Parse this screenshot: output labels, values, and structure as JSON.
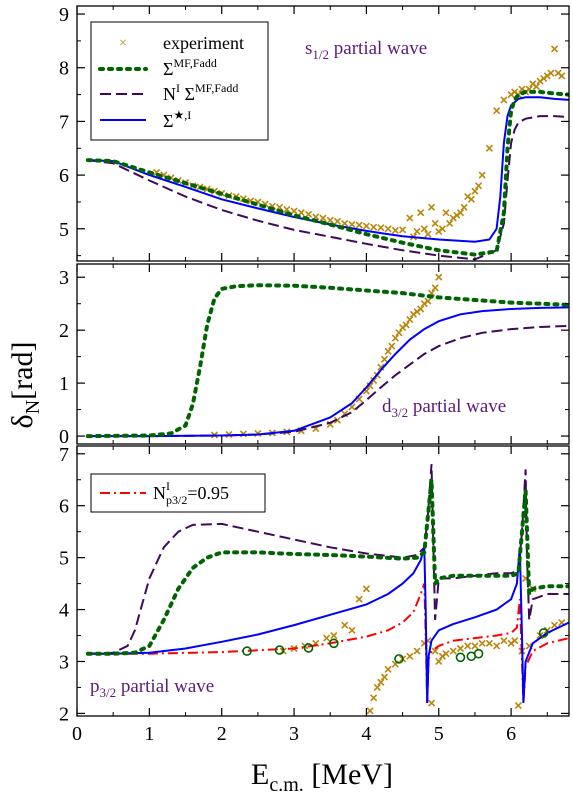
{
  "figure": {
    "ylabel_main": "δ",
    "ylabel_sub": "N",
    "ylabel_unit": "[rad]",
    "xlabel_main": "E",
    "xlabel_sub": "c.m.",
    "xlabel_unit": " [MeV]"
  },
  "colors": {
    "experiment": "#b8860b",
    "sigma_mf_fadd": "#006400",
    "ni_sigma_mf_fadd": "#3d0a5c",
    "sigma_star": "#0000ff",
    "n_p32": "#ff0000",
    "open_circles": "#006400",
    "annotation": "#5b1a78"
  },
  "legend": {
    "experiment": "experiment",
    "sigma_mf": {
      "base": "Σ",
      "sup": "MF,Fadd"
    },
    "ni_sigma": {
      "n": "N",
      "n_sup": "I",
      "sigma": " Σ",
      "sigma_sup": "MF,Fadd"
    },
    "sigma_star": {
      "base": "Σ",
      "sup": "★,I"
    },
    "np32": {
      "base": "N",
      "sup": "I",
      "sub": "p3/2",
      "tail": "=0.95"
    }
  },
  "chart_data": [
    {
      "type": "line",
      "annotation": {
        "main": "s",
        "sub": "1/2",
        "tail": " partial wave"
      },
      "xlim": [
        0,
        6.8
      ],
      "ylim": [
        4.4,
        9.15
      ],
      "yticks": [
        5,
        6,
        7,
        8,
        9
      ],
      "xticks": [
        0,
        1,
        2,
        3,
        4,
        5,
        6
      ],
      "series": [
        {
          "name": "experiment",
          "style": "cross",
          "x": [
            1.1,
            1.2,
            1.3,
            1.4,
            1.5,
            1.6,
            1.7,
            1.8,
            1.9,
            2.0,
            2.1,
            2.2,
            2.3,
            2.4,
            2.5,
            2.6,
            2.7,
            2.8,
            2.9,
            3.0,
            3.1,
            3.2,
            3.3,
            3.4,
            3.5,
            3.6,
            3.7,
            3.8,
            3.9,
            4.0,
            4.1,
            4.2,
            4.3,
            4.4,
            4.5,
            4.6,
            4.65,
            4.7,
            4.75,
            4.8,
            4.85,
            4.9,
            4.95,
            5.0,
            5.05,
            5.1,
            5.15,
            5.2,
            5.25,
            5.3,
            5.35,
            5.4,
            5.45,
            5.5,
            5.55,
            5.6,
            5.7,
            5.8,
            5.9,
            6.0,
            6.05,
            6.1,
            6.15,
            6.2,
            6.25,
            6.3,
            6.35,
            6.4,
            6.45,
            6.5,
            6.55,
            6.6,
            6.65,
            6.7
          ],
          "y": [
            6.05,
            6.0,
            5.95,
            5.9,
            5.86,
            5.8,
            5.78,
            5.74,
            5.7,
            5.66,
            5.62,
            5.6,
            5.56,
            5.52,
            5.5,
            5.46,
            5.42,
            5.4,
            5.36,
            5.33,
            5.3,
            5.27,
            5.22,
            5.2,
            5.16,
            5.14,
            5.1,
            5.08,
            5.07,
            5.05,
            5.03,
            5.02,
            5.0,
            4.97,
            4.98,
            5.2,
            4.85,
            4.95,
            5.3,
            5.0,
            4.9,
            5.4,
            5.1,
            4.95,
            5.0,
            5.3,
            5.1,
            5.2,
            5.25,
            5.3,
            5.4,
            5.6,
            5.55,
            5.7,
            5.8,
            6.0,
            6.5,
            7.2,
            7.4,
            7.5,
            7.55,
            7.5,
            7.6,
            7.55,
            7.6,
            7.7,
            7.65,
            7.75,
            7.8,
            7.85,
            7.9,
            8.35,
            7.9,
            7.85
          ]
        },
        {
          "name": "Σ^MF,Fadd",
          "style": "dotted",
          "x": [
            0.15,
            0.5,
            1.0,
            1.5,
            2.0,
            2.5,
            3.0,
            3.5,
            4.0,
            4.5,
            5.0,
            5.5,
            5.8,
            5.9,
            5.95,
            6.0,
            6.05,
            6.1,
            6.2,
            6.4,
            6.6,
            6.8
          ],
          "y": [
            6.28,
            6.26,
            6.05,
            5.85,
            5.65,
            5.45,
            5.25,
            5.08,
            4.9,
            4.74,
            4.6,
            4.52,
            4.58,
            5.3,
            6.5,
            7.2,
            7.4,
            7.5,
            7.55,
            7.55,
            7.52,
            7.5
          ]
        },
        {
          "name": "N^I Σ^MF,Fadd",
          "style": "dashed",
          "x": [
            0.15,
            0.5,
            1.0,
            1.5,
            2.0,
            2.5,
            3.0,
            3.5,
            4.0,
            4.5,
            5.0,
            5.5,
            5.8,
            5.9,
            5.95,
            6.0,
            6.05,
            6.1,
            6.2,
            6.4,
            6.6,
            6.8
          ],
          "y": [
            6.28,
            6.22,
            5.9,
            5.6,
            5.35,
            5.15,
            4.98,
            4.85,
            4.72,
            4.6,
            4.5,
            4.43,
            4.6,
            5.1,
            5.9,
            6.6,
            6.85,
            6.98,
            7.05,
            7.1,
            7.1,
            7.08
          ]
        },
        {
          "name": "Σ^★,I",
          "style": "solid",
          "x": [
            0.15,
            0.5,
            1.0,
            1.5,
            2.0,
            2.5,
            3.0,
            3.5,
            4.0,
            4.5,
            5.0,
            5.5,
            5.7,
            5.8,
            5.85,
            5.9,
            5.95,
            6.0,
            6.1,
            6.2,
            6.4,
            6.6,
            6.8
          ],
          "y": [
            6.28,
            6.26,
            6.0,
            5.78,
            5.55,
            5.38,
            5.22,
            5.08,
            4.96,
            4.86,
            4.8,
            4.76,
            4.8,
            5.0,
            5.6,
            6.6,
            7.1,
            7.3,
            7.42,
            7.45,
            7.45,
            7.42,
            7.4
          ]
        }
      ]
    },
    {
      "type": "line",
      "annotation": {
        "main": "d",
        "sub": "3/2",
        "tail": " partial wave"
      },
      "xlim": [
        0,
        6.8
      ],
      "ylim": [
        -0.15,
        3.25
      ],
      "yticks": [
        0,
        1,
        2,
        3
      ],
      "xticks": [
        0,
        1,
        2,
        3,
        4,
        5,
        6
      ],
      "series": [
        {
          "name": "experiment",
          "style": "cross",
          "x": [
            1.9,
            2.1,
            2.3,
            2.5,
            2.7,
            2.9,
            3.1,
            3.3,
            3.5,
            3.6,
            3.7,
            3.8,
            3.9,
            4.0,
            4.05,
            4.1,
            4.15,
            4.2,
            4.25,
            4.3,
            4.35,
            4.4,
            4.45,
            4.5,
            4.55,
            4.6,
            4.65,
            4.7,
            4.75,
            4.8,
            4.85,
            4.9,
            4.95,
            5.0
          ],
          "y": [
            0.02,
            0.03,
            0.04,
            0.05,
            0.06,
            0.08,
            0.1,
            0.14,
            0.22,
            0.3,
            0.42,
            0.55,
            0.7,
            0.85,
            0.95,
            1.05,
            1.15,
            1.3,
            1.45,
            1.6,
            1.7,
            1.85,
            1.95,
            2.05,
            2.1,
            2.2,
            2.3,
            2.35,
            2.4,
            2.5,
            2.55,
            2.7,
            2.8,
            3.0
          ]
        },
        {
          "name": "Σ^MF,Fadd",
          "style": "dotted",
          "x": [
            0.15,
            1.0,
            1.3,
            1.5,
            1.6,
            1.7,
            1.8,
            1.9,
            2.0,
            2.2,
            2.5,
            3.0,
            3.5,
            4.0,
            4.5,
            5.0,
            5.5,
            6.0,
            6.8
          ],
          "y": [
            0.0,
            0.01,
            0.05,
            0.2,
            0.6,
            1.3,
            2.1,
            2.6,
            2.78,
            2.83,
            2.85,
            2.84,
            2.8,
            2.75,
            2.7,
            2.62,
            2.57,
            2.52,
            2.48
          ]
        },
        {
          "name": "N^I Σ^MF,Fadd",
          "style": "dashed",
          "x": [
            0.15,
            1.0,
            2.0,
            2.5,
            3.0,
            3.5,
            3.8,
            4.0,
            4.2,
            4.4,
            4.6,
            4.8,
            5.0,
            5.3,
            5.6,
            6.0,
            6.4,
            6.8
          ],
          "y": [
            0.0,
            0.0,
            0.01,
            0.03,
            0.08,
            0.25,
            0.45,
            0.68,
            0.92,
            1.15,
            1.35,
            1.55,
            1.7,
            1.85,
            1.95,
            2.02,
            2.06,
            2.08
          ]
        },
        {
          "name": "Σ^★,I",
          "style": "solid",
          "x": [
            0.15,
            1.0,
            2.0,
            2.5,
            3.0,
            3.5,
            3.8,
            4.0,
            4.2,
            4.4,
            4.6,
            4.8,
            5.0,
            5.3,
            5.6,
            6.0,
            6.4,
            6.8
          ],
          "y": [
            0.0,
            0.0,
            0.01,
            0.03,
            0.1,
            0.35,
            0.62,
            0.92,
            1.25,
            1.55,
            1.82,
            2.02,
            2.17,
            2.3,
            2.36,
            2.4,
            2.42,
            2.43
          ]
        }
      ]
    },
    {
      "type": "line",
      "annotation": {
        "main": "p",
        "sub": "3/2",
        "tail": " partial wave"
      },
      "xlim": [
        0,
        6.8
      ],
      "ylim": [
        1.95,
        7.15
      ],
      "yticks": [
        2,
        3,
        4,
        5,
        6,
        7
      ],
      "xticks": [
        0,
        1,
        2,
        3,
        4,
        5,
        6
      ],
      "series": [
        {
          "name": "experiment",
          "style": "cross",
          "x": [
            2.85,
            3.0,
            3.15,
            3.3,
            3.45,
            3.55,
            3.7,
            3.8,
            3.9,
            4.0,
            4.05,
            4.1,
            4.15,
            4.2,
            4.25,
            4.3,
            4.4,
            4.5,
            4.6,
            4.7,
            4.8,
            4.85,
            4.9,
            4.95,
            5.0,
            5.05,
            5.1,
            5.2,
            5.3,
            5.4,
            5.5,
            5.6,
            5.7,
            5.8,
            5.9,
            6.0,
            6.05,
            6.1,
            6.15,
            6.2,
            6.25,
            6.3,
            6.4,
            6.5,
            6.6,
            6.7
          ],
          "y": [
            3.2,
            3.25,
            3.3,
            3.35,
            3.45,
            3.5,
            3.7,
            3.6,
            4.2,
            4.4,
            2.05,
            2.3,
            2.5,
            2.6,
            2.7,
            2.85,
            2.95,
            3.05,
            3.1,
            3.2,
            3.35,
            3.4,
            2.2,
            3.2,
            3.0,
            3.1,
            3.15,
            3.2,
            3.25,
            3.3,
            3.3,
            3.35,
            3.35,
            3.3,
            3.4,
            3.35,
            3.4,
            2.15,
            3.2,
            4.6,
            3.3,
            4.4,
            3.5,
            3.6,
            3.7,
            3.75
          ]
        },
        {
          "name": "Σ^MF,Fadd",
          "style": "dotted",
          "x": [
            0.15,
            0.5,
            0.8,
            1.0,
            1.2,
            1.4,
            1.6,
            1.8,
            2.0,
            2.5,
            3.0,
            3.5,
            4.0,
            4.5,
            4.7,
            4.8,
            4.85,
            4.9,
            4.95,
            5.0,
            5.2,
            5.5,
            5.8,
            6.0,
            6.1,
            6.15,
            6.2,
            6.25,
            6.3,
            6.5,
            6.8
          ],
          "y": [
            3.15,
            3.15,
            3.17,
            3.3,
            3.8,
            4.4,
            4.8,
            5.0,
            5.1,
            5.1,
            5.07,
            5.05,
            5.02,
            4.98,
            5.0,
            5.1,
            5.8,
            6.5,
            4.5,
            4.6,
            4.65,
            4.65,
            4.65,
            4.65,
            4.7,
            5.5,
            6.3,
            4.3,
            4.4,
            4.45,
            4.45
          ]
        },
        {
          "name": "N^I Σ^MF,Fadd",
          "style": "dashed",
          "x": [
            0.15,
            0.5,
            0.7,
            0.8,
            0.9,
            1.0,
            1.2,
            1.4,
            1.6,
            2.0,
            2.5,
            3.0,
            3.5,
            4.0,
            4.5,
            4.7,
            4.8,
            4.85,
            4.9,
            4.92,
            4.95,
            5.0,
            5.2,
            5.5,
            5.8,
            6.0,
            6.1,
            6.15,
            6.2,
            6.22,
            6.25,
            6.3,
            6.5,
            6.8
          ],
          "y": [
            3.15,
            3.17,
            3.3,
            3.6,
            4.1,
            4.6,
            5.2,
            5.5,
            5.63,
            5.65,
            5.5,
            5.35,
            5.2,
            5.08,
            5.0,
            5.05,
            5.2,
            5.8,
            6.8,
            5.5,
            3.8,
            4.6,
            4.6,
            4.65,
            4.7,
            4.7,
            4.75,
            5.5,
            6.7,
            5.0,
            3.8,
            4.2,
            4.3,
            4.3
          ]
        },
        {
          "name": "Σ^★,I",
          "style": "solid",
          "x": [
            0.15,
            0.5,
            1.0,
            1.5,
            2.0,
            2.5,
            3.0,
            3.5,
            4.0,
            4.3,
            4.5,
            4.65,
            4.75,
            4.8,
            4.82,
            4.84,
            4.86,
            4.9,
            5.0,
            5.2,
            5.5,
            5.8,
            6.0,
            6.08,
            6.12,
            6.15,
            6.17,
            6.2,
            6.3,
            6.5,
            6.8
          ],
          "y": [
            3.15,
            3.15,
            3.17,
            3.25,
            3.38,
            3.52,
            3.7,
            3.9,
            4.1,
            4.3,
            4.5,
            4.7,
            4.95,
            5.2,
            4.0,
            2.2,
            3.1,
            3.4,
            3.6,
            3.72,
            3.85,
            4.0,
            4.2,
            4.5,
            5.2,
            3.5,
            2.2,
            3.0,
            3.35,
            3.55,
            3.75
          ]
        },
        {
          "name": "N^I_p3/2=0.95",
          "style": "dashdot",
          "x": [
            0.15,
            1.0,
            2.0,
            3.0,
            3.5,
            4.0,
            4.3,
            4.5,
            4.65,
            4.75,
            4.8,
            4.82,
            4.84,
            4.86,
            4.9,
            5.0,
            5.2,
            5.5,
            5.8,
            6.0,
            6.08,
            6.12,
            6.15,
            6.17,
            6.2,
            6.3,
            6.5,
            6.8
          ],
          "y": [
            3.15,
            3.15,
            3.18,
            3.25,
            3.35,
            3.48,
            3.6,
            3.75,
            3.95,
            4.3,
            4.5,
            3.5,
            2.2,
            3.05,
            3.2,
            3.3,
            3.4,
            3.45,
            3.5,
            3.55,
            3.65,
            4.2,
            3.0,
            2.2,
            2.9,
            3.2,
            3.35,
            3.45
          ]
        },
        {
          "name": "open circles",
          "style": "circle",
          "x": [
            2.35,
            2.8,
            3.2,
            3.55,
            4.45,
            5.3,
            5.45,
            5.55,
            6.45
          ],
          "y": [
            3.2,
            3.22,
            3.26,
            3.35,
            3.05,
            3.08,
            3.1,
            3.15,
            3.55
          ]
        }
      ]
    }
  ]
}
